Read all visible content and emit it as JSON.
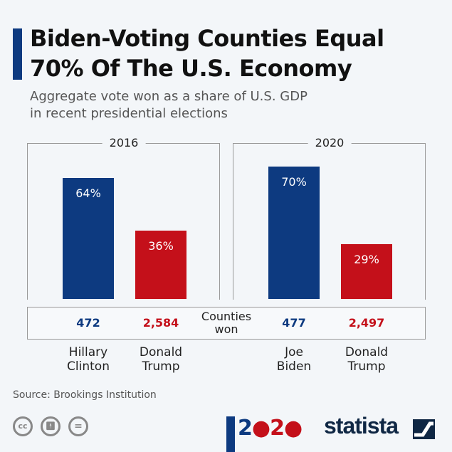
{
  "title_lines": [
    "Biden-Voting Counties Equal",
    "70% Of The U.S. Economy"
  ],
  "subtitle_lines": [
    "Aggregate vote won as a share of U.S. GDP",
    "in recent presidential elections"
  ],
  "colors": {
    "democrat": "#0d3a80",
    "republican": "#c4101a",
    "accent": "#0d3a80",
    "background": "#f3f6f9"
  },
  "chart_data": {
    "type": "bar",
    "unit": "%",
    "panels": [
      {
        "label": "2016",
        "categories": [
          "Hillary Clinton",
          "Donald Trump"
        ],
        "values": [
          64,
          36
        ],
        "value_labels": [
          "64%",
          "36%"
        ],
        "counties_won": [
          "472",
          "2,584"
        ],
        "name_lines": [
          [
            "Hillary",
            "Clinton"
          ],
          [
            "Donald",
            "Trump"
          ]
        ]
      },
      {
        "label": "2020",
        "categories": [
          "Joe Biden",
          "Donald Trump"
        ],
        "values": [
          70,
          29
        ],
        "value_labels": [
          "70%",
          "29%"
        ],
        "counties_won": [
          "477",
          "2,497"
        ],
        "name_lines": [
          [
            "Joe",
            "Biden"
          ],
          [
            "Donald",
            "Trump"
          ]
        ]
      }
    ],
    "counties_label_lines": [
      "Counties",
      "won"
    ],
    "ylim": [
      0,
      100
    ],
    "grid": false
  },
  "source": "Source: Brookings Institution",
  "footer": {
    "license_icons": [
      "cc-icon",
      "by-icon",
      "nd-icon"
    ],
    "election_logo": "2020",
    "brand": "statista"
  }
}
